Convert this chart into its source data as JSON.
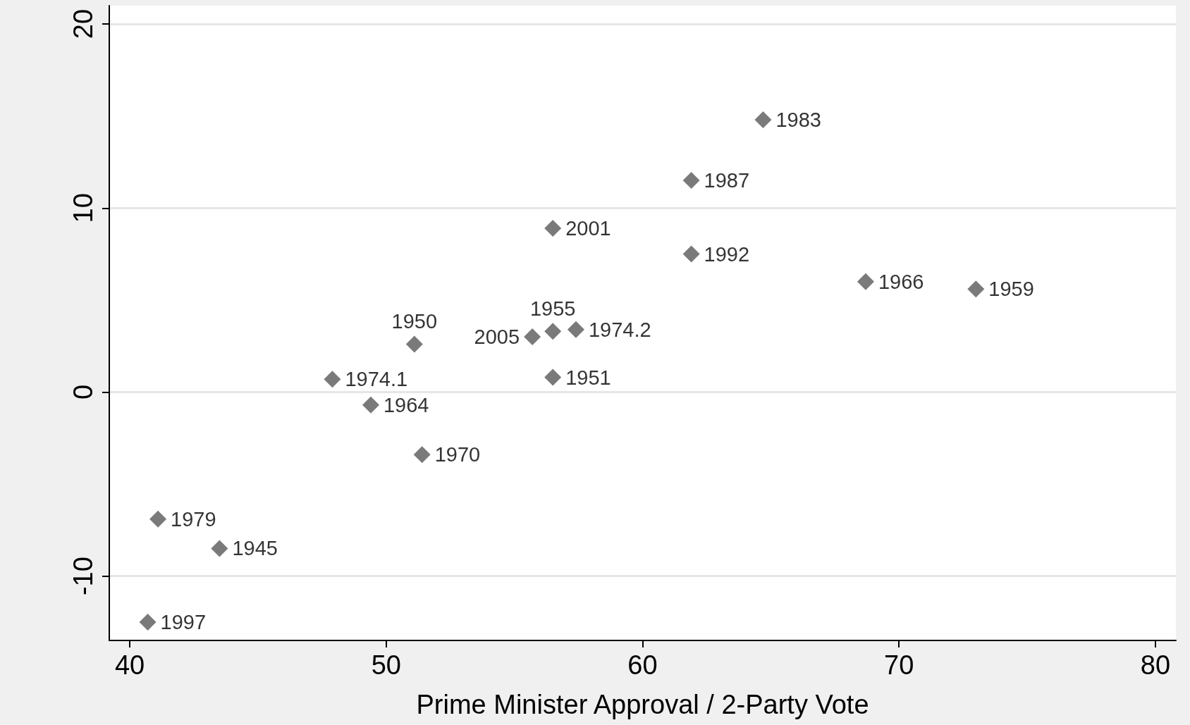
{
  "chart_data": {
    "type": "scatter",
    "xlabel": "Prime Minister Approval / 2-Party Vote",
    "x": [
      64.7,
      61.9,
      56.5,
      61.9,
      68.7,
      73.0,
      56.5,
      57.4,
      55.7,
      51.1,
      47.9,
      56.5,
      49.4,
      51.4,
      41.1,
      43.5,
      40.7
    ],
    "series": [
      {
        "color": "#595959",
        "values": [
          14.8,
          11.5,
          8.9,
          7.5,
          6.0,
          5.6,
          3.3,
          3.4,
          3.0,
          2.6,
          0.7,
          0.8,
          -0.7,
          -3.4,
          -6.9,
          -8.5,
          -12.5
        ]
      }
    ],
    "annotations": [
      {
        "text": "1983",
        "x": 64.7,
        "y": 14.8
      },
      {
        "text": "1987",
        "x": 61.9,
        "y": 11.5
      },
      {
        "text": "2001",
        "x": 56.5,
        "y": 8.9
      },
      {
        "text": "1992",
        "x": 61.9,
        "y": 7.5
      },
      {
        "text": "1966",
        "x": 68.7,
        "y": 6.0
      },
      {
        "text": "1959",
        "x": 73.0,
        "y": 5.6
      },
      {
        "text": "1955",
        "x": 56.5,
        "y": 3.3
      },
      {
        "text": "1974.2",
        "x": 57.4,
        "y": 3.4
      },
      {
        "text": "2005",
        "x": 55.7,
        "y": 3.0
      },
      {
        "text": "1950",
        "x": 51.1,
        "y": 2.6
      },
      {
        "text": "1974.1",
        "x": 47.9,
        "y": 0.7
      },
      {
        "text": "1951",
        "x": 56.5,
        "y": 0.8
      },
      {
        "text": "1964",
        "x": 49.4,
        "y": -0.7
      },
      {
        "text": "1970",
        "x": 51.4,
        "y": -3.4
      },
      {
        "text": "1979",
        "x": 41.1,
        "y": -6.9
      },
      {
        "text": "1945",
        "x": 43.5,
        "y": -8.5
      },
      {
        "text": "1997",
        "x": 40.7,
        "y": -12.5
      }
    ],
    "xlim": [
      39.2,
      80.8
    ],
    "xticks": [
      40,
      50,
      60,
      70,
      80
    ],
    "ylim": [
      -13.5,
      21
    ],
    "yticks": [
      -10,
      0,
      10,
      20
    ],
    "grid": "y",
    "marker": "diamond"
  }
}
